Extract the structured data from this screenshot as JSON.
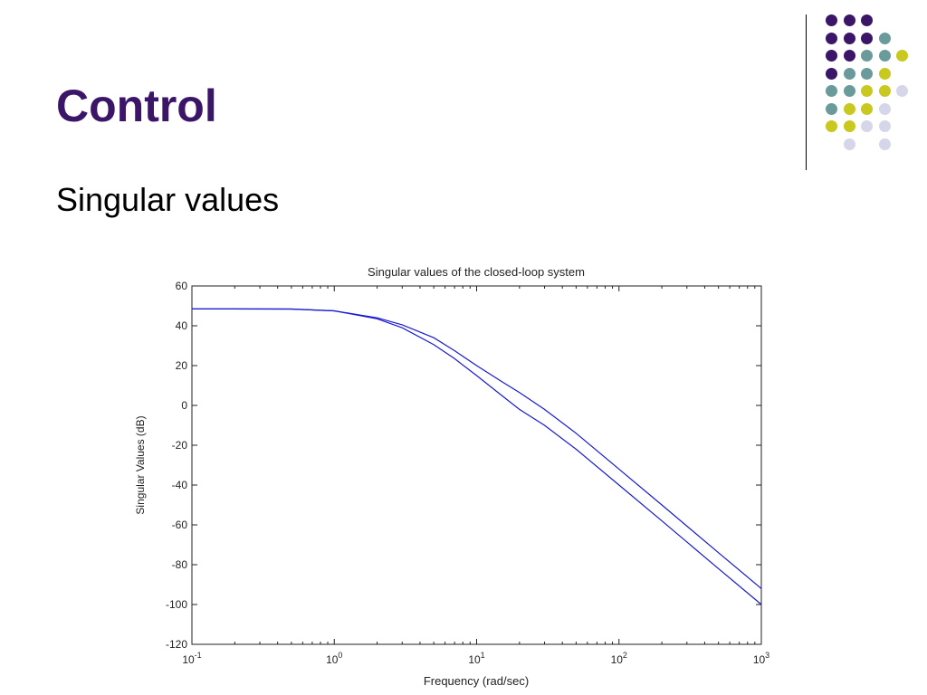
{
  "slide": {
    "title": "Control",
    "subtitle": "Singular values"
  },
  "decoration": {
    "dot_palette": [
      "#3b1567",
      "#6a9a9a",
      "#c8c81e",
      "#d6d6ea"
    ],
    "dot_grid": [
      [
        0,
        0,
        0,
        null,
        null
      ],
      [
        0,
        0,
        0,
        1,
        null
      ],
      [
        0,
        0,
        1,
        1,
        2
      ],
      [
        0,
        1,
        1,
        2,
        null
      ],
      [
        1,
        1,
        2,
        2,
        3
      ],
      [
        1,
        2,
        2,
        3,
        null
      ],
      [
        2,
        2,
        3,
        3,
        null
      ],
      [
        null,
        3,
        null,
        3,
        null
      ]
    ]
  },
  "chart_data": {
    "type": "line",
    "title": "Singular values of the closed-loop system",
    "xlabel": "Frequency (rad/sec)",
    "ylabel": "Singular Values (dB)",
    "xscale": "log",
    "xlim": [
      0.1,
      1000
    ],
    "ylim": [
      -120,
      60
    ],
    "xticks": [
      {
        "value": 0.1,
        "base": "10",
        "exp": "-1"
      },
      {
        "value": 1,
        "base": "10",
        "exp": "0"
      },
      {
        "value": 10,
        "base": "10",
        "exp": "1"
      },
      {
        "value": 100,
        "base": "10",
        "exp": "2"
      },
      {
        "value": 1000,
        "base": "10",
        "exp": "3"
      }
    ],
    "yticks": [
      "60",
      "40",
      "20",
      "0",
      "-20",
      "-40",
      "-60",
      "-80",
      "-100",
      "-120"
    ],
    "grid": false,
    "line_color": "#1a1ad0",
    "series": [
      {
        "x": [
          0.1,
          0.5,
          1,
          2,
          3,
          5,
          7,
          10,
          15,
          20,
          30,
          50,
          100,
          200,
          500,
          1000
        ],
        "values": [
          48.5,
          48.4,
          47.5,
          44,
          40.5,
          34,
          27.5,
          20,
          12,
          6.5,
          -2,
          -14,
          -32,
          -50,
          -74,
          -92
        ]
      },
      {
        "x": [
          0.1,
          0.5,
          1,
          2,
          3,
          5,
          7,
          10,
          15,
          20,
          30,
          50,
          100,
          200,
          500,
          1000
        ],
        "values": [
          48.5,
          48.4,
          47.5,
          43.5,
          39,
          30.5,
          23.5,
          15,
          5,
          -2,
          -10,
          -22,
          -40,
          -58,
          -82,
          -100
        ]
      }
    ]
  }
}
